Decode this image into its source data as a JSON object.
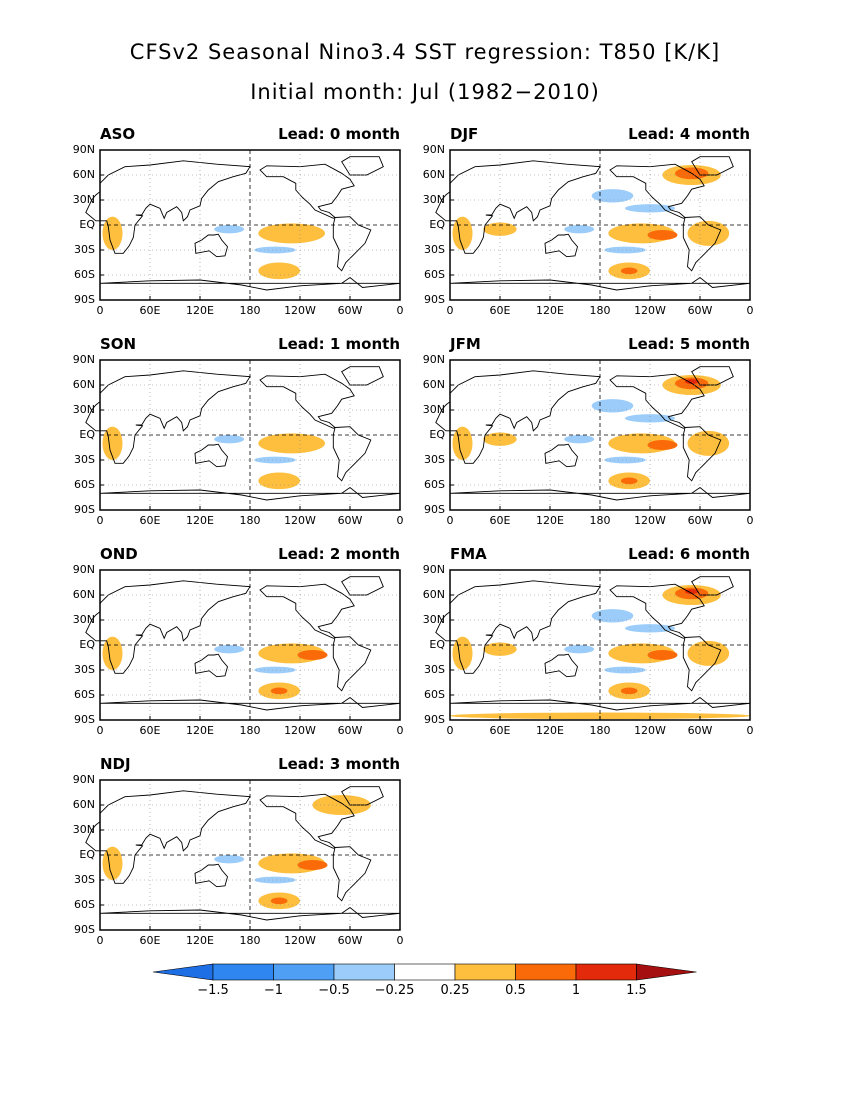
{
  "title": {
    "line1": "CFSv2 Seasonal Nino3.4 SST regression: T850 [K/K]",
    "line2": "Initial month: Jul (1982−2010)"
  },
  "axes": {
    "lat_ticks": [
      "90N",
      "60N",
      "30N",
      "EQ",
      "30S",
      "60S",
      "90S"
    ],
    "lon_ticks": [
      "0",
      "60E",
      "120E",
      "180",
      "120W",
      "60W",
      "0"
    ]
  },
  "panels": [
    {
      "season": "ASO",
      "lead": "Lead: 0 month",
      "strength": 0.5
    },
    {
      "season": "DJF",
      "lead": "Lead: 4 month",
      "strength": 1.2
    },
    {
      "season": "SON",
      "lead": "Lead: 1 month",
      "strength": 0.6
    },
    {
      "season": "JFM",
      "lead": "Lead: 5 month",
      "strength": 1.5
    },
    {
      "season": "OND",
      "lead": "Lead: 2 month",
      "strength": 0.8
    },
    {
      "season": "FMA",
      "lead": "Lead: 6 month",
      "strength": 1.8
    },
    {
      "season": "NDJ",
      "lead": "Lead: 3 month",
      "strength": 0.9
    }
  ],
  "colorbar": {
    "labels": [
      "−1.5",
      "−1",
      "−0.5",
      "−0.25",
      "0.25",
      "0.5",
      "1",
      "1.5"
    ],
    "colors": [
      "#1e6ee6",
      "#2f86f0",
      "#4fa0f5",
      "#9ccdfa",
      "#ffffff",
      "#fdbf3d",
      "#fb6a08",
      "#e32a0a",
      "#a50f0f"
    ]
  }
}
